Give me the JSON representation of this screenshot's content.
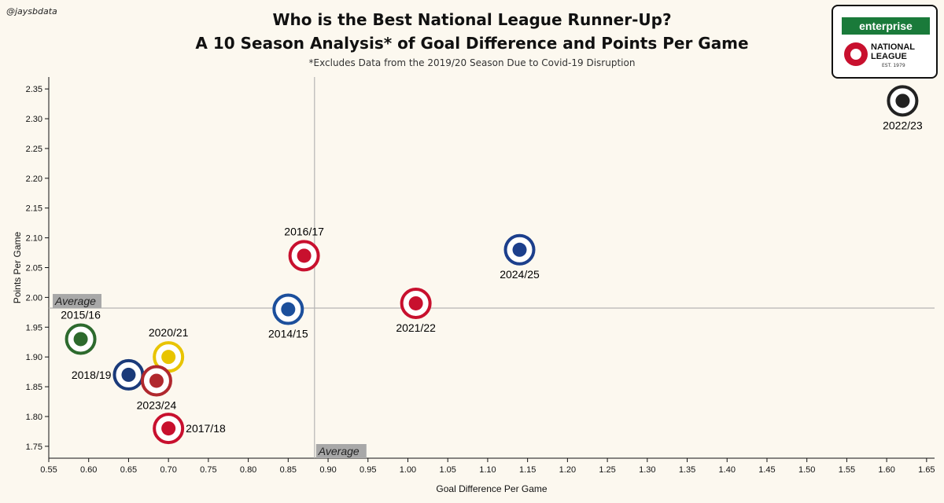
{
  "credit": "@jaysbdata",
  "title_line1": "Who is the Best National League Runner-Up?",
  "title_line2": "A 10 Season Analysis* of Goal Difference and Points Per Game",
  "subtitle": "*Excludes Data from the 2019/20 Season Due to Covid-19 Disruption",
  "logos": {
    "sponsor": "enterprise",
    "league_line1": "NATIONAL",
    "league_line2": "LEAGUE",
    "est": "EST. 1979"
  },
  "chart_data": {
    "type": "scatter",
    "xlabel": "Goal Difference Per Game",
    "ylabel": "Points Per Game",
    "xlim": [
      0.55,
      1.66
    ],
    "ylim": [
      1.73,
      2.37
    ],
    "xticks": [
      0.55,
      0.6,
      0.65,
      0.7,
      0.75,
      0.8,
      0.85,
      0.9,
      0.95,
      1.0,
      1.05,
      1.1,
      1.15,
      1.2,
      1.25,
      1.3,
      1.35,
      1.4,
      1.45,
      1.5,
      1.55,
      1.6,
      1.65
    ],
    "yticks": [
      1.75,
      1.8,
      1.85,
      1.9,
      1.95,
      2.0,
      2.05,
      2.1,
      2.15,
      2.2,
      2.25,
      2.3,
      2.35
    ],
    "grid": false,
    "average": {
      "x": 0.883,
      "y": 1.982,
      "label": "Average"
    },
    "points": [
      {
        "label": "2015/16",
        "x": 0.59,
        "y": 1.93,
        "color": "#2d6a2d",
        "label_pos": "above"
      },
      {
        "label": "2016/17",
        "x": 0.87,
        "y": 2.07,
        "color": "#c8102e",
        "label_pos": "above"
      },
      {
        "label": "2014/15",
        "x": 0.85,
        "y": 1.98,
        "color": "#1c4f9c",
        "label_pos": "below"
      },
      {
        "label": "2017/18",
        "x": 0.7,
        "y": 1.78,
        "color": "#c8102e",
        "label_pos": "right"
      },
      {
        "label": "2018/19",
        "x": 0.65,
        "y": 1.87,
        "color": "#1a3a7a",
        "label_pos": "left"
      },
      {
        "label": "2020/21",
        "x": 0.7,
        "y": 1.9,
        "color": "#e8c400",
        "label_pos": "above"
      },
      {
        "label": "2023/24",
        "x": 0.685,
        "y": 1.86,
        "color": "#b0282e",
        "label_pos": "below"
      },
      {
        "label": "2021/22",
        "x": 1.01,
        "y": 1.99,
        "color": "#c8102e",
        "label_pos": "below"
      },
      {
        "label": "2024/25",
        "x": 1.14,
        "y": 2.08,
        "color": "#1c3f8c",
        "label_pos": "below"
      },
      {
        "label": "2022/23",
        "x": 1.62,
        "y": 2.33,
        "color": "#222222",
        "label_pos": "below"
      }
    ]
  }
}
